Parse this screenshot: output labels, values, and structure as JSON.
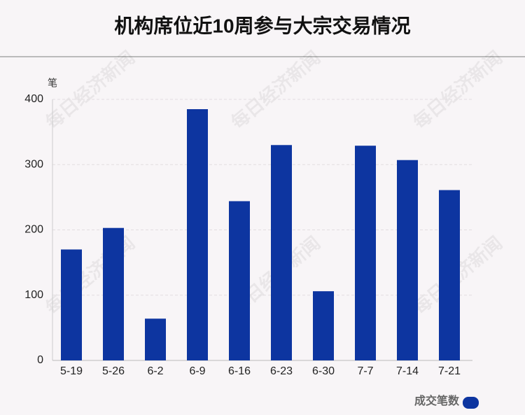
{
  "chart_data": {
    "type": "bar",
    "title": "机构席位近10周参与大宗交易情况",
    "y_label": "笔",
    "watermark": "每日经济新闻",
    "categories": [
      "5-19",
      "5-26",
      "6-2",
      "6-9",
      "6-16",
      "6-23",
      "6-30",
      "7-7",
      "7-14",
      "7-21"
    ],
    "series": [
      {
        "name": "成交笔数",
        "color": "#0d35a0",
        "values": [
          170,
          203,
          64,
          385,
          244,
          330,
          106,
          329,
          307,
          261
        ]
      }
    ],
    "ylim": [
      0,
      400
    ],
    "yticks": [
      0,
      100,
      200,
      300,
      400
    ],
    "grid": true,
    "legend": "bottom-right"
  }
}
